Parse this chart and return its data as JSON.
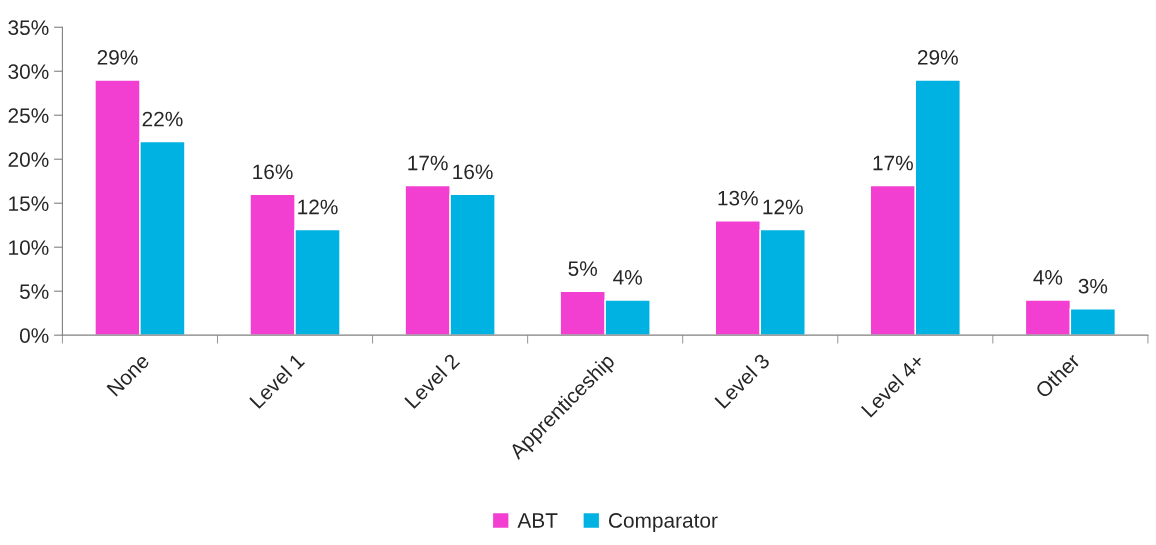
{
  "chart_data": {
    "type": "bar",
    "categories": [
      "None",
      "Level 1",
      "Level 2",
      "Apprenticeship",
      "Level 3",
      "Level 4+",
      "Other"
    ],
    "series": [
      {
        "name": "ABT",
        "color": "#f23fd2",
        "values": [
          29,
          16,
          17,
          5,
          13,
          17,
          4
        ],
        "value_labels": [
          "29%",
          "16%",
          "17%",
          "5%",
          "13%",
          "17%",
          "4%"
        ]
      },
      {
        "name": "Comparator",
        "color": "#00b2e2",
        "values": [
          22,
          12,
          16,
          4,
          12,
          29,
          3
        ],
        "value_labels": [
          "22%",
          "12%",
          "16%",
          "4%",
          "12%",
          "29%",
          "3%"
        ]
      }
    ],
    "ylim": [
      0,
      35
    ],
    "yticks": [
      {
        "value": 0,
        "label": "0%"
      },
      {
        "value": 5,
        "label": "5%"
      },
      {
        "value": 10,
        "label": "10%"
      },
      {
        "value": 15,
        "label": "15%"
      },
      {
        "value": 20,
        "label": "20%"
      },
      {
        "value": 25,
        "label": "25%"
      },
      {
        "value": 30,
        "label": "30%"
      },
      {
        "value": 35,
        "label": "35%"
      }
    ],
    "grid": false,
    "legend": "bottom"
  }
}
